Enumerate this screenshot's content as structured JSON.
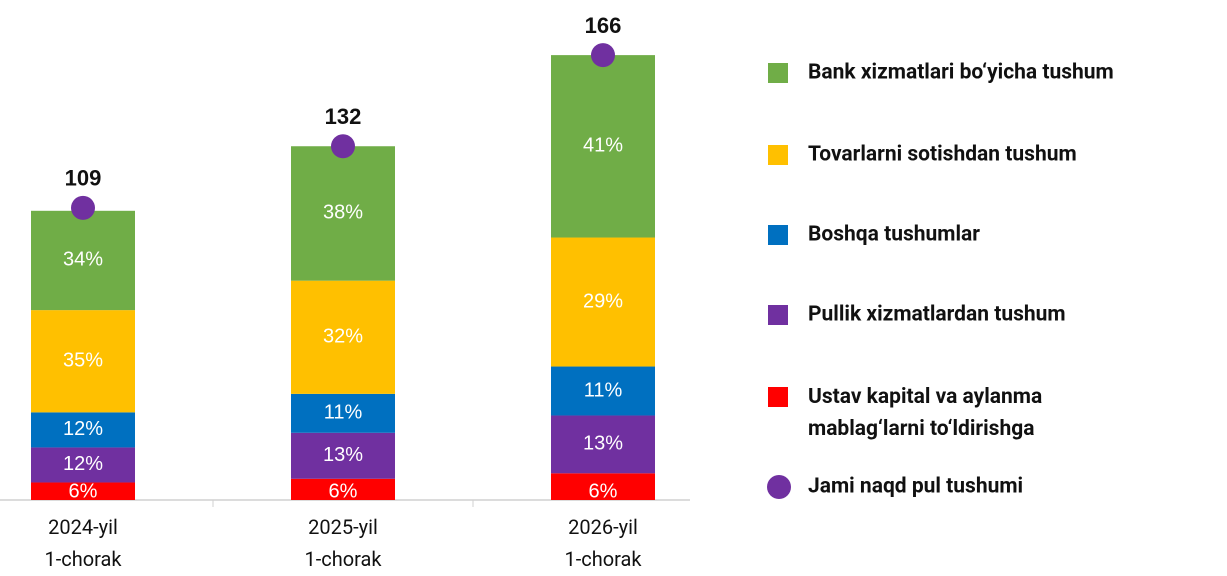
{
  "chart_data": {
    "type": "stacked_bar",
    "categories": [
      "2024-yil\n1-chorak",
      "2025-yil\n1-chorak",
      "2026-yil\n1-chorak"
    ],
    "series": [
      {
        "name": "Ustav kapital va aylanma\nmablag‘larni to‘ldirishga",
        "color": "#ff0000",
        "values": [
          6,
          6,
          6
        ],
        "value_labels": [
          "6%",
          "6%",
          "6%"
        ]
      },
      {
        "name": "Pullik xizmatlardan tushum",
        "color": "#7030a0",
        "values": [
          12,
          13,
          13
        ],
        "value_labels": [
          "12%",
          "13%",
          "13%"
        ]
      },
      {
        "name": "Boshqa tushumlar",
        "color": "#0070c0",
        "values": [
          12,
          11,
          11
        ],
        "value_labels": [
          "12%",
          "11%",
          "11%"
        ]
      },
      {
        "name": "Tovarlarni sotishdan tushum",
        "color": "#ffc000",
        "values": [
          35,
          32,
          29
        ],
        "value_labels": [
          "35%",
          "32%",
          "29%"
        ]
      },
      {
        "name": "Bank xizmatlari bo‘yicha tushum",
        "color": "#70ad47",
        "values": [
          34,
          38,
          41
        ],
        "value_labels": [
          "34%",
          "38%",
          "41%"
        ]
      }
    ],
    "total": {
      "name": "Jami naqd pul tushumi",
      "color": "#7030a0",
      "values": [
        109,
        132,
        166
      ]
    },
    "ylim": [
      0,
      180
    ]
  }
}
